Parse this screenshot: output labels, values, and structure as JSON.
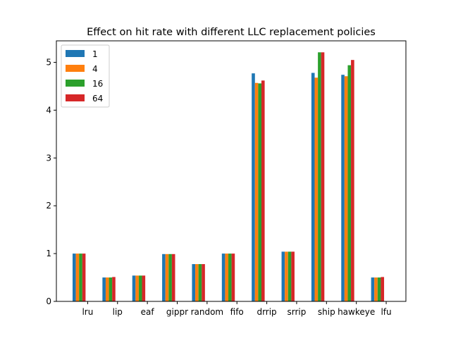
{
  "chart_data": {
    "type": "bar",
    "title": "Effect on hit rate with different LLC replacement policies",
    "xlabel": "",
    "ylabel": "",
    "ylim": [
      0,
      5.45
    ],
    "yticks": [
      "0",
      "1",
      "2",
      "3",
      "4",
      "5"
    ],
    "grid": false,
    "legend_position": "top-left",
    "categories": [
      "lru",
      "lip",
      "eaf",
      "gippr",
      "random",
      "fifo",
      "drrip",
      "srrip",
      "ship",
      "hawkeye",
      "lfu"
    ],
    "series": [
      {
        "name": "1",
        "color": "#1f77b4",
        "values": [
          1.0,
          0.5,
          0.54,
          0.99,
          0.78,
          1.0,
          4.77,
          1.04,
          4.78,
          4.74,
          0.5
        ]
      },
      {
        "name": "4",
        "color": "#ff7f0e",
        "values": [
          1.0,
          0.5,
          0.54,
          0.99,
          0.78,
          1.0,
          4.57,
          1.04,
          4.68,
          4.71,
          0.5
        ]
      },
      {
        "name": "16",
        "color": "#2ca02c",
        "values": [
          1.0,
          0.5,
          0.54,
          0.99,
          0.78,
          1.0,
          4.56,
          1.04,
          5.21,
          4.94,
          0.5
        ]
      },
      {
        "name": "64",
        "color": "#d62728",
        "values": [
          1.0,
          0.51,
          0.54,
          0.99,
          0.78,
          1.0,
          4.62,
          1.04,
          5.21,
          5.05,
          0.51
        ]
      }
    ]
  }
}
